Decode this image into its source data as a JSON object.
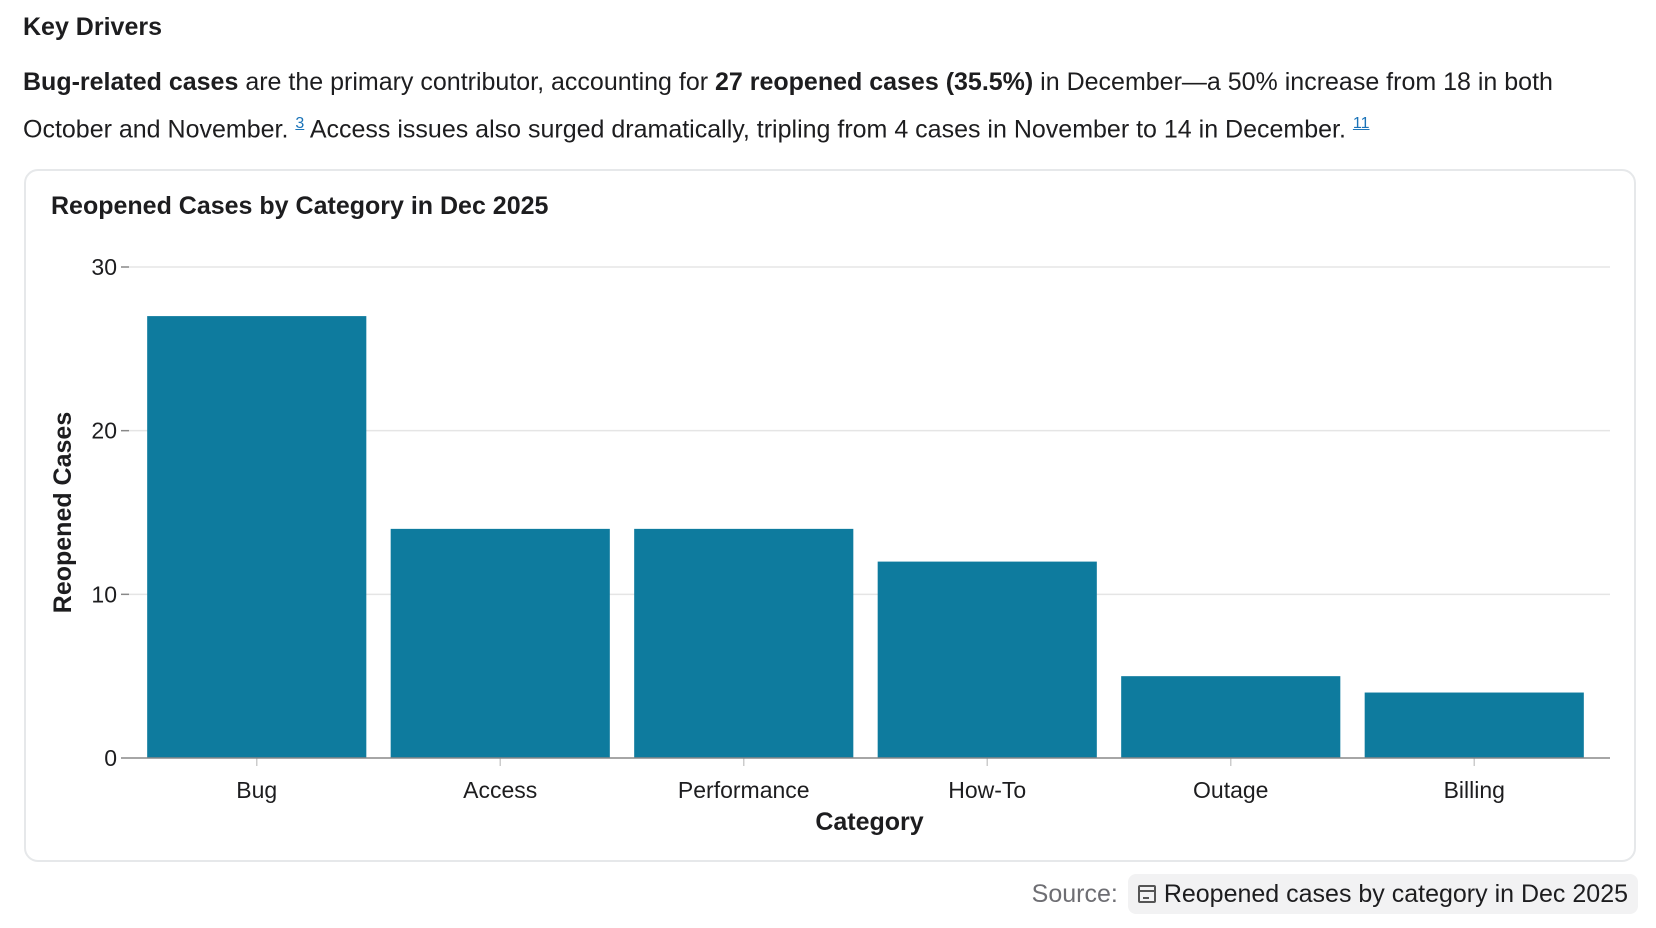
{
  "section_title": "Key Drivers",
  "paragraph": {
    "bold1": "Bug-related cases",
    "text1": " are the primary contributor, accounting for ",
    "bold2": "27 reopened cases (35.5%)",
    "text2": " in December—a 50% increase from 18 in both October and November. ",
    "ref1": "3",
    "text3": " Access issues also surged dramatically, tripling from 4 cases in November to 14 in December. ",
    "ref2": "11"
  },
  "chart_data": {
    "type": "bar",
    "title": "Reopened Cases by Category in Dec 2025",
    "xlabel": "Category",
    "ylabel": "Reopened Cases",
    "categories": [
      "Bug",
      "Access",
      "Performance",
      "How-To",
      "Outage",
      "Billing"
    ],
    "values": [
      27,
      14,
      14,
      12,
      5,
      4
    ],
    "ylim": [
      0,
      30
    ],
    "yticks": [
      0,
      10,
      20,
      30
    ],
    "grid": true,
    "bar_color": "#0e7b9e"
  },
  "source": {
    "label": "Source:",
    "icon": "table-icon",
    "name": "Reopened cases by category in Dec 2025"
  }
}
